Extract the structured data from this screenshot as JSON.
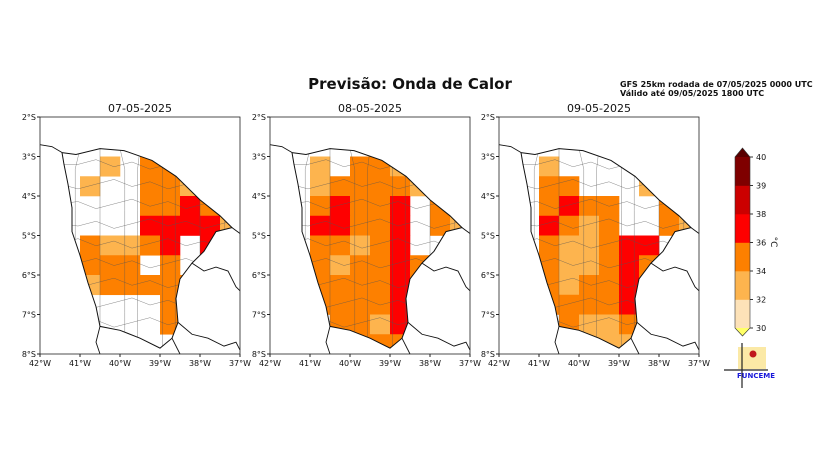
{
  "title": "Previsão: Onda de Calor",
  "info": {
    "line1": "GFS 25km rodada de 07/05/2025 0000 UTC",
    "line2": "Válido até 09/05/2025 1800 UTC"
  },
  "axes": {
    "lon_ticks": [
      "42°W",
      "41°W",
      "40°W",
      "39°W",
      "38°W",
      "37°W"
    ],
    "lat_ticks": [
      "2°S",
      "3°S",
      "4°S",
      "5°S",
      "6°S",
      "7°S",
      "8°S"
    ],
    "lon_range": [
      -42,
      -37
    ],
    "lat_range": [
      -8,
      -2
    ]
  },
  "colorbar": {
    "unit": "°C",
    "ticks": [
      "40",
      "39",
      "38",
      "36",
      "34",
      "32",
      "30"
    ],
    "bounds": [
      30,
      32,
      34,
      36,
      38,
      39,
      40
    ],
    "colors": [
      "#fde2b8",
      "#fdb44e",
      "#fd8000",
      "#fe0000",
      "#cc0000",
      "#7f0000"
    ],
    "under_color": "#ffff66",
    "over_color": "#5a0000"
  },
  "logo": {
    "text": "FUNCEME",
    "color": "#1a1adb"
  },
  "chart_data": {
    "type": "heatmap",
    "grid_origin_lon": -41.5,
    "grid_origin_lat": -2.5,
    "grid_step_deg": 0.5,
    "panels": [
      {
        "title": "07-05-2025",
        "rows": [
          [
            null,
            null,
            null,
            null,
            null,
            null,
            null,
            null,
            null
          ],
          [
            null,
            null,
            33,
            null,
            35,
            35,
            null,
            null,
            null
          ],
          [
            null,
            33,
            null,
            null,
            35,
            35,
            33,
            null,
            null
          ],
          [
            null,
            null,
            null,
            null,
            35,
            35,
            37,
            35,
            null
          ],
          [
            null,
            null,
            null,
            null,
            37,
            37,
            37,
            37,
            33
          ],
          [
            null,
            35,
            33,
            33,
            35,
            37,
            null,
            37,
            null
          ],
          [
            null,
            35,
            35,
            35,
            null,
            35,
            null,
            37,
            null
          ],
          [
            null,
            33,
            35,
            35,
            35,
            35,
            35,
            null,
            null
          ],
          [
            null,
            null,
            null,
            null,
            null,
            35,
            null,
            null,
            null
          ],
          [
            null,
            null,
            null,
            null,
            null,
            35,
            null,
            null,
            null
          ],
          [
            null,
            null,
            null,
            null,
            null,
            null,
            null,
            null,
            null
          ]
        ]
      },
      {
        "title": "08-05-2025",
        "rows": [
          [
            null,
            null,
            null,
            null,
            null,
            null,
            null,
            null,
            null
          ],
          [
            null,
            33,
            null,
            35,
            35,
            33,
            null,
            null,
            null
          ],
          [
            null,
            33,
            35,
            35,
            35,
            35,
            33,
            null,
            null
          ],
          [
            null,
            35,
            37,
            35,
            35,
            37,
            null,
            35,
            null
          ],
          [
            null,
            37,
            37,
            35,
            35,
            37,
            null,
            35,
            33
          ],
          [
            null,
            35,
            35,
            33,
            35,
            37,
            null,
            null,
            null
          ],
          [
            null,
            35,
            33,
            35,
            35,
            37,
            35,
            null,
            null
          ],
          [
            null,
            35,
            35,
            35,
            35,
            37,
            35,
            null,
            null
          ],
          [
            null,
            35,
            35,
            35,
            35,
            37,
            35,
            null,
            null
          ],
          [
            null,
            null,
            35,
            35,
            33,
            37,
            35,
            null,
            null
          ],
          [
            null,
            null,
            null,
            35,
            35,
            35,
            35,
            null,
            null
          ]
        ]
      },
      {
        "title": "09-05-2025",
        "rows": [
          [
            null,
            null,
            null,
            null,
            null,
            null,
            null,
            null,
            null
          ],
          [
            null,
            33,
            null,
            null,
            null,
            null,
            null,
            null,
            null
          ],
          [
            null,
            35,
            35,
            null,
            null,
            null,
            33,
            null,
            null
          ],
          [
            null,
            35,
            37,
            35,
            35,
            null,
            null,
            35,
            null
          ],
          [
            null,
            37,
            35,
            33,
            35,
            null,
            null,
            35,
            33
          ],
          [
            null,
            35,
            33,
            33,
            35,
            37,
            37,
            null,
            null
          ],
          [
            null,
            35,
            33,
            33,
            35,
            37,
            35,
            37,
            null
          ],
          [
            null,
            35,
            33,
            35,
            35,
            37,
            35,
            null,
            null
          ],
          [
            null,
            35,
            35,
            35,
            35,
            37,
            null,
            null,
            null
          ],
          [
            null,
            null,
            35,
            33,
            33,
            35,
            35,
            null,
            null
          ],
          [
            null,
            null,
            null,
            33,
            33,
            33,
            35,
            null,
            null
          ]
        ]
      }
    ]
  }
}
